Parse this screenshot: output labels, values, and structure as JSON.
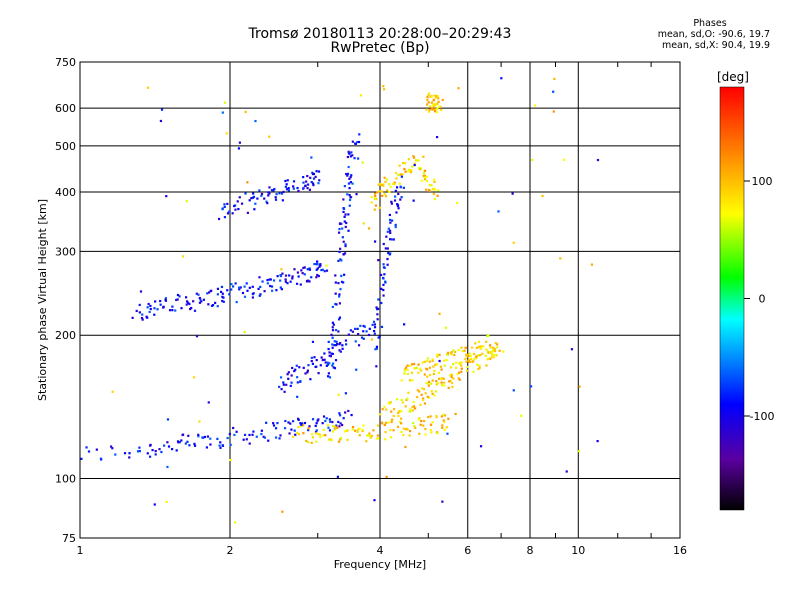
{
  "chart_data": {
    "type": "scatter",
    "title": "Tromsø 20180113 20:28:00–20:29:43",
    "subtitle": "RwPretec (Bp)",
    "xlabel": "Frequency [MHz]",
    "ylabel": "Stationary phase Virtual Height [km]",
    "x_scale": "log",
    "y_scale": "log",
    "xlim": [
      1,
      16
    ],
    "ylim": [
      75,
      750
    ],
    "x_ticks": [
      1,
      2,
      4,
      6,
      8,
      10,
      16
    ],
    "y_ticks": [
      75,
      100,
      200,
      300,
      400,
      500,
      600,
      750
    ],
    "grid": true,
    "colorbar": {
      "label": "[deg]",
      "range": [
        -180,
        180
      ],
      "ticks": [
        100,
        0,
        -100
      ],
      "colors": [
        "#000000",
        "#5a00a0",
        "#0000ff",
        "#00ffff",
        "#00ff00",
        "#ffff00",
        "#ff8000",
        "#ff0000"
      ]
    },
    "phase_stats": {
      "header": "Phases",
      "line_o": "mean, sd,O: -90.6, 19.7",
      "line_x": "mean, sd,X:  90.4, 19.9"
    },
    "series": [
      {
        "phase_mean": -90.6,
        "traces": [
          {
            "f": [
              1.0,
              1.35,
              1.55,
              1.75,
              2.0,
              2.3,
              2.6,
              2.9,
              3.2,
              3.5
            ],
            "h": [
              112,
              115,
              118,
              120,
              122,
              125,
              128,
              130,
              132,
              134
            ]
          },
          {
            "f": [
              1.3,
              1.4,
              1.55,
              1.7,
              1.85,
              2.0,
              2.2,
              2.4,
              2.6,
              2.8,
              3.0,
              3.1
            ],
            "h": [
              225,
              228,
              232,
              236,
              240,
              245,
              250,
              258,
              262,
              268,
              275,
              282
            ]
          },
          {
            "f": [
              1.9,
              2.1,
              2.3,
              2.5,
              2.7,
              2.9,
              3.0
            ],
            "h": [
              360,
              375,
              390,
              400,
              410,
              420,
              430
            ]
          },
          {
            "f": [
              3.2,
              3.25,
              3.3,
              3.35,
              3.4,
              3.45,
              3.5,
              3.6
            ],
            "h": [
              160,
              200,
              250,
              300,
              350,
              400,
              460,
              520
            ]
          },
          {
            "f": [
              3.9,
              4.0,
              4.1,
              4.2,
              4.3,
              4.4
            ],
            "h": [
              180,
              230,
              280,
              330,
              380,
              420
            ]
          },
          {
            "f": [
              2.5,
              2.7,
              2.9,
              3.1,
              3.3,
              3.6,
              3.9
            ],
            "h": [
              155,
              165,
              170,
              180,
              190,
              200,
              210
            ]
          }
        ]
      },
      {
        "phase_mean": 90.4,
        "traces": [
          {
            "f": [
              2.7,
              3.0,
              3.3,
              3.6,
              4.0,
              4.4,
              4.8,
              5.2,
              5.6
            ],
            "h": [
              125,
              124,
              124,
              125,
              126,
              128,
              129,
              130,
              132
            ]
          },
          {
            "f": [
              4.0,
              4.3,
              4.6,
              4.9,
              5.2,
              5.5,
              5.8,
              6.2,
              6.6,
              7.0
            ],
            "h": [
              135,
              140,
              145,
              150,
              155,
              162,
              170,
              175,
              180,
              185
            ]
          },
          {
            "f": [
              4.4,
              4.7,
              5.0,
              5.3,
              5.6,
              6.0,
              6.4,
              6.8
            ],
            "h": [
              165,
              168,
              172,
              175,
              178,
              182,
              188,
              195
            ]
          },
          {
            "f": [
              3.9,
              4.0,
              4.2,
              4.5,
              4.8,
              5.0,
              5.2
            ],
            "h": [
              380,
              400,
              420,
              450,
              460,
              420,
              400
            ]
          },
          {
            "f": [
              5.0,
              5.1,
              5.2,
              5.3
            ],
            "h": [
              610,
              620,
              615,
              605
            ]
          }
        ]
      }
    ]
  }
}
